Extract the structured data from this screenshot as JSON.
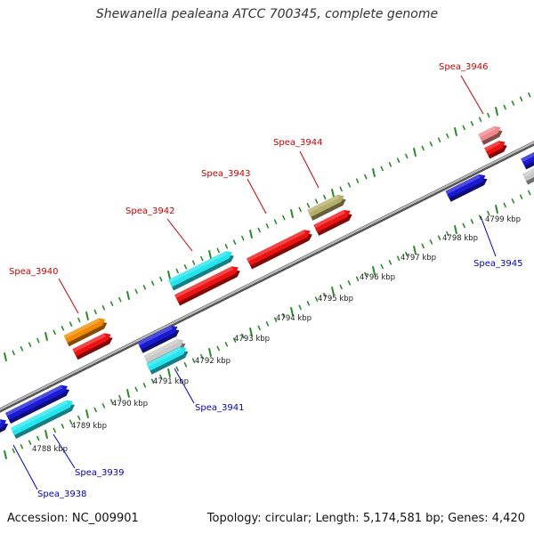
{
  "title": "Shewanella pealeana ATCC 700345, complete genome",
  "footer": {
    "accession_label": "Accession:",
    "accession": "NC_009901",
    "topology_label": "Topology:",
    "topology": "circular",
    "length_label": "Length:",
    "length": "5,174,581 bp",
    "genes_label": "Genes:",
    "genes": "4,420"
  },
  "ticks": [
    "4788 kbp",
    "4789 kbp",
    "4790 kbp",
    "4791 kbp",
    "4792 kbp",
    "4793 kbp",
    "4794 kbp",
    "4795 kbp",
    "4796 kbp",
    "4797 kbp",
    "4798 kbp",
    "4799 kbp"
  ],
  "colors": {
    "backbone": "#8c8c8c",
    "ruler_dots": "#2a8a2a",
    "forward_label": "#cc0000",
    "reverse_label": "#0000cc",
    "red": "#ee1111",
    "blue": "#1a1ad6",
    "cyan": "#22e5ee",
    "orange": "#f28a00",
    "olive": "#b5ad6a",
    "pink": "#f0888c",
    "grey": "#c8c8c8"
  },
  "genes": {
    "forward": [
      {
        "label": "Spea_3940",
        "color": "red"
      },
      {
        "label": "Spea_3942",
        "color": "cyan"
      },
      {
        "label": "Spea_3943",
        "color": "red"
      },
      {
        "label": "Spea_3944",
        "color": "olive"
      },
      {
        "label": "Spea_3946",
        "color": "pink"
      }
    ],
    "reverse": [
      {
        "label": "Spea_3938",
        "color": "blue"
      },
      {
        "label": "Spea_3939",
        "color": "cyan"
      },
      {
        "label": "Spea_3941",
        "color": "blue"
      },
      {
        "label": "Spea_3945",
        "color": "blue"
      }
    ]
  }
}
